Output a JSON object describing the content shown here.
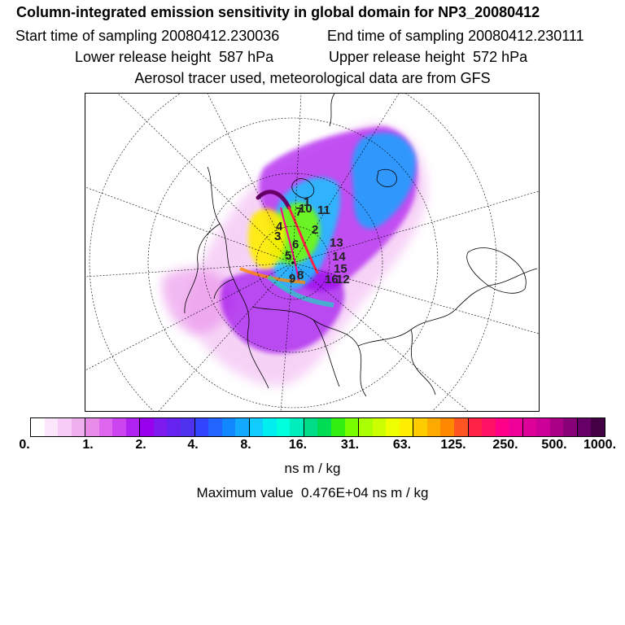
{
  "title": "Column-integrated emission sensitivity in global domain for NP3_20080412",
  "sampling": {
    "start_label": "Start time of sampling",
    "start_value": "20080412.230036",
    "end_label": "End time of sampling",
    "end_value": "20080412.230111"
  },
  "release": {
    "lower_label": "Lower release height",
    "lower_value": "587 hPa",
    "upper_label": "Upper release height",
    "upper_value": "572 hPa"
  },
  "info_line": "Aerosol tracer used, meteorological data are from GFS",
  "map": {
    "markers": [
      "1",
      "2",
      "3",
      "4",
      "5",
      "6",
      "7",
      "8",
      "9",
      "10",
      "11",
      "12",
      "13",
      "14",
      "15",
      "16"
    ]
  },
  "colorbar": {
    "tick_labels": [
      "0.",
      "1.",
      "2.",
      "4.",
      "8.",
      "16.",
      "31.",
      "63.",
      "125.",
      "250.",
      "500.",
      "1000."
    ],
    "colors": [
      "#ffffff",
      "#fbe6fb",
      "#f6ccf6",
      "#f0b0f0",
      "#e98ce9",
      "#df66ee",
      "#cc44f0",
      "#b022f0",
      "#9900ee",
      "#7f1aee",
      "#6622ee",
      "#4d33ee",
      "#3344ff",
      "#2266ff",
      "#1188ff",
      "#11aaff",
      "#11ccff",
      "#00eeee",
      "#00ffdd",
      "#00eebb",
      "#00dd88",
      "#00dd55",
      "#33ee11",
      "#77ff00",
      "#aaff00",
      "#ccff00",
      "#eeff00",
      "#ffee00",
      "#ffcc00",
      "#ffaa00",
      "#ff8800",
      "#ff5522",
      "#ff2244",
      "#ff1166",
      "#ff0088",
      "#ee0099",
      "#dd0099",
      "#cc0099",
      "#aa0088",
      "#880077",
      "#660066",
      "#440044"
    ],
    "unit": "ns m / kg",
    "max_label": "Maximum value",
    "max_value": "0.476E+04 ns m / kg"
  }
}
